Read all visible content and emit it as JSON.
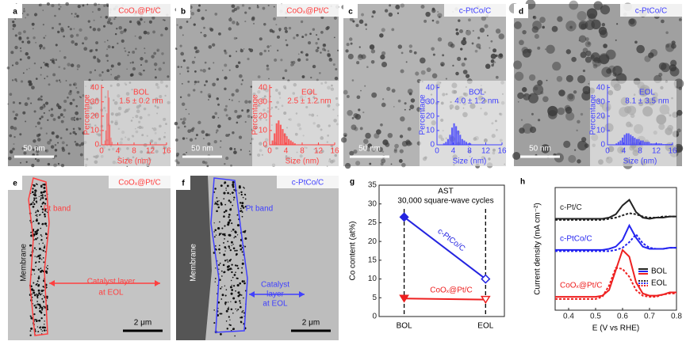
{
  "panels": [
    {
      "label": "a",
      "sample": "CoOₓ@Pt/C",
      "sample_color": "#ff4040",
      "scale_bar": "50 nm"
    },
    {
      "label": "b",
      "sample": "CoOₓ@Pt/C",
      "sample_color": "#ff4040",
      "scale_bar": "50 nm"
    },
    {
      "label": "c",
      "sample": "c-PtCo/C",
      "sample_color": "#4040ff",
      "scale_bar": "50 nm"
    },
    {
      "label": "d",
      "sample": "c-PtCo/C",
      "sample_color": "#4040ff",
      "scale_bar": "50 nm"
    },
    {
      "label": "e",
      "sample": "CoOₓ@Pt/C",
      "sample_color": "#ff4040",
      "scale_bar": "2 μm",
      "annotations": [
        "Pt band",
        "Membrane",
        "Catalyst layer",
        "at EOL"
      ]
    },
    {
      "label": "f",
      "sample": "c-PtCo/C",
      "sample_color": "#4040ff",
      "scale_bar": "2 μm",
      "annotations": [
        "Pt band",
        "Membrane",
        "Catalyst",
        "layer",
        "at EOL"
      ]
    },
    {
      "label": "g"
    },
    {
      "label": "h"
    }
  ],
  "chart_data": [
    {
      "type": "histogram",
      "title": "BOL",
      "subtitle": "1.5 ± 0.2 nm",
      "xlabel": "Size (nm)",
      "ylabel": "Percentage",
      "color": "#ff4040",
      "bins": [
        0.75,
        1,
        1.25,
        1.5,
        1.75,
        2,
        2.25,
        2.5,
        2.75
      ],
      "counts": [
        3,
        10,
        22,
        38,
        33,
        14,
        5,
        2
      ],
      "xlim": [
        0,
        16
      ],
      "xticks": [
        0,
        4,
        8,
        12,
        16
      ],
      "ylim": [
        0,
        42
      ],
      "yticks": [
        0,
        10,
        20,
        30,
        40
      ]
    },
    {
      "type": "histogram",
      "title": "EOL",
      "subtitle": "2.5 ± 1.2 nm",
      "xlabel": "Size (nm)",
      "ylabel": "Percentage",
      "color": "#ff4040",
      "bins": [
        0.5,
        1,
        1.5,
        2,
        2.5,
        3,
        3.5,
        4,
        4.5,
        5,
        5.5,
        6,
        6.5
      ],
      "counts": [
        3,
        8,
        15,
        17,
        14,
        11,
        8,
        6,
        4,
        3,
        2,
        1
      ],
      "xlim": [
        0,
        16
      ],
      "xticks": [
        0,
        4,
        8,
        12,
        16
      ],
      "ylim": [
        0,
        42
      ],
      "yticks": [
        0,
        10,
        20,
        30,
        40
      ]
    },
    {
      "type": "histogram",
      "title": "BOL",
      "subtitle": "4.0 ± 1.2 nm",
      "xlabel": "Size (nm)",
      "ylabel": "Percentage",
      "color": "#4040ff",
      "bins": [
        1.5,
        2,
        2.5,
        3,
        3.5,
        4,
        4.5,
        5,
        5.5,
        6,
        6.5,
        7,
        7.5,
        8,
        8.5
      ],
      "counts": [
        1,
        2,
        4,
        7,
        12,
        15,
        13,
        10,
        7,
        4,
        3,
        2,
        1,
        1
      ],
      "xlim": [
        0,
        16
      ],
      "xticks": [
        0,
        4,
        8,
        12,
        16
      ],
      "ylim": [
        0,
        42
      ],
      "yticks": [
        0,
        10,
        20,
        30,
        40
      ]
    },
    {
      "type": "histogram",
      "title": "EOL",
      "subtitle": "8.1 ± 3.5 nm",
      "xlabel": "Size (nm)",
      "ylabel": "Percentage",
      "color": "#4040ff",
      "bins": [
        2,
        2.5,
        3,
        3.5,
        4,
        4.5,
        5,
        5.5,
        6,
        6.5,
        7,
        7.5,
        8,
        8.5,
        9,
        9.5,
        10,
        10.5,
        11,
        11.5,
        12,
        12.5,
        13,
        13.5,
        14,
        14.5,
        15,
        15.5,
        16
      ],
      "counts": [
        1,
        2,
        3,
        5,
        7,
        8,
        8,
        7,
        6,
        5,
        4,
        4,
        3,
        3,
        2,
        2,
        2,
        1,
        1,
        1,
        1,
        1,
        1,
        0.5,
        0.5,
        0.5,
        0.5,
        0.5
      ],
      "xlim": [
        0,
        16
      ],
      "xticks": [
        0,
        4,
        8,
        12,
        16
      ],
      "ylim": [
        0,
        42
      ],
      "yticks": [
        0,
        10,
        20,
        30,
        40
      ]
    },
    {
      "type": "line",
      "ylabel": "Co content (at%)",
      "annotations": [
        "AST",
        "30,000 square-wave cycles"
      ],
      "categories": [
        "BOL",
        "EOL"
      ],
      "series": [
        {
          "name": "c-PtCo/C",
          "color": "#2424e0",
          "values": [
            26.5,
            10
          ]
        },
        {
          "name": "CoOₓ@Pt/C",
          "color": "#ee2020",
          "values": [
            4.8,
            4.5
          ]
        }
      ],
      "ylim": [
        0,
        35
      ],
      "yticks": [
        0,
        5,
        10,
        15,
        20,
        25,
        30,
        35
      ]
    },
    {
      "type": "line",
      "ylabel": "Current density (mA cm⁻²)",
      "xlabel": "E (V vs RHE)",
      "x": [
        0.35,
        0.375,
        0.4,
        0.425,
        0.45,
        0.475,
        0.5,
        0.525,
        0.55,
        0.575,
        0.6,
        0.625,
        0.65,
        0.675,
        0.7,
        0.725,
        0.75,
        0.775,
        0.8
      ],
      "conditions": [
        {
          "name": "BOL",
          "dash": "solid"
        },
        {
          "name": "EOL",
          "dash": "dotted"
        }
      ],
      "series": [
        {
          "name": "c-Pt/C",
          "color": "#222222",
          "values": [
            [
              8.2,
              8.2,
              8.2,
              8.2,
              8.2,
              8.2,
              8.2,
              8.2,
              8.3,
              8.6,
              9.4,
              9.9,
              8.8,
              8.3,
              8.2,
              8.3,
              8.3,
              8.4,
              8.4
            ],
            [
              8.1,
              8.1,
              8.1,
              8.1,
              8.1,
              8.1,
              8.1,
              8.1,
              8.2,
              8.3,
              8.5,
              8.7,
              8.6,
              8.4,
              8.3,
              8.3,
              8.4,
              8.4,
              8.4
            ]
          ]
        },
        {
          "name": "c-PtCo/C",
          "color": "#2424f0",
          "values": [
            [
              5.4,
              5.4,
              5.4,
              5.4,
              5.4,
              5.4,
              5.4,
              5.4,
              5.5,
              5.7,
              6.3,
              7.6,
              6.5,
              5.7,
              5.5,
              5.5,
              5.5,
              5.6,
              5.6
            ],
            [
              5.3,
              5.3,
              5.3,
              5.3,
              5.3,
              5.3,
              5.3,
              5.3,
              5.3,
              5.4,
              5.6,
              6.1,
              6.8,
              6.0,
              5.6,
              5.5,
              5.5,
              5.6,
              5.6
            ]
          ]
        },
        {
          "name": "CoOₓ@Pt/C",
          "color": "#ee2020",
          "values": [
            [
              1.2,
              1.2,
              1.2,
              1.2,
              1.2,
              1.2,
              1.2,
              1.3,
              1.8,
              3.6,
              5.4,
              4.8,
              2.5,
              1.5,
              1.3,
              1.3,
              1.4,
              1.6,
              1.6
            ],
            [
              1.0,
              1.0,
              1.0,
              1.0,
              1.0,
              1.0,
              1.0,
              1.2,
              2.2,
              3.8,
              3.7,
              3.0,
              1.8,
              1.3,
              1.2,
              1.2,
              1.4,
              1.5,
              1.5
            ]
          ]
        }
      ],
      "xlim": [
        0.35,
        0.8
      ],
      "xticks": [
        0.4,
        0.5,
        0.6,
        0.7,
        0.8
      ],
      "ylim": [
        0,
        11
      ]
    }
  ]
}
